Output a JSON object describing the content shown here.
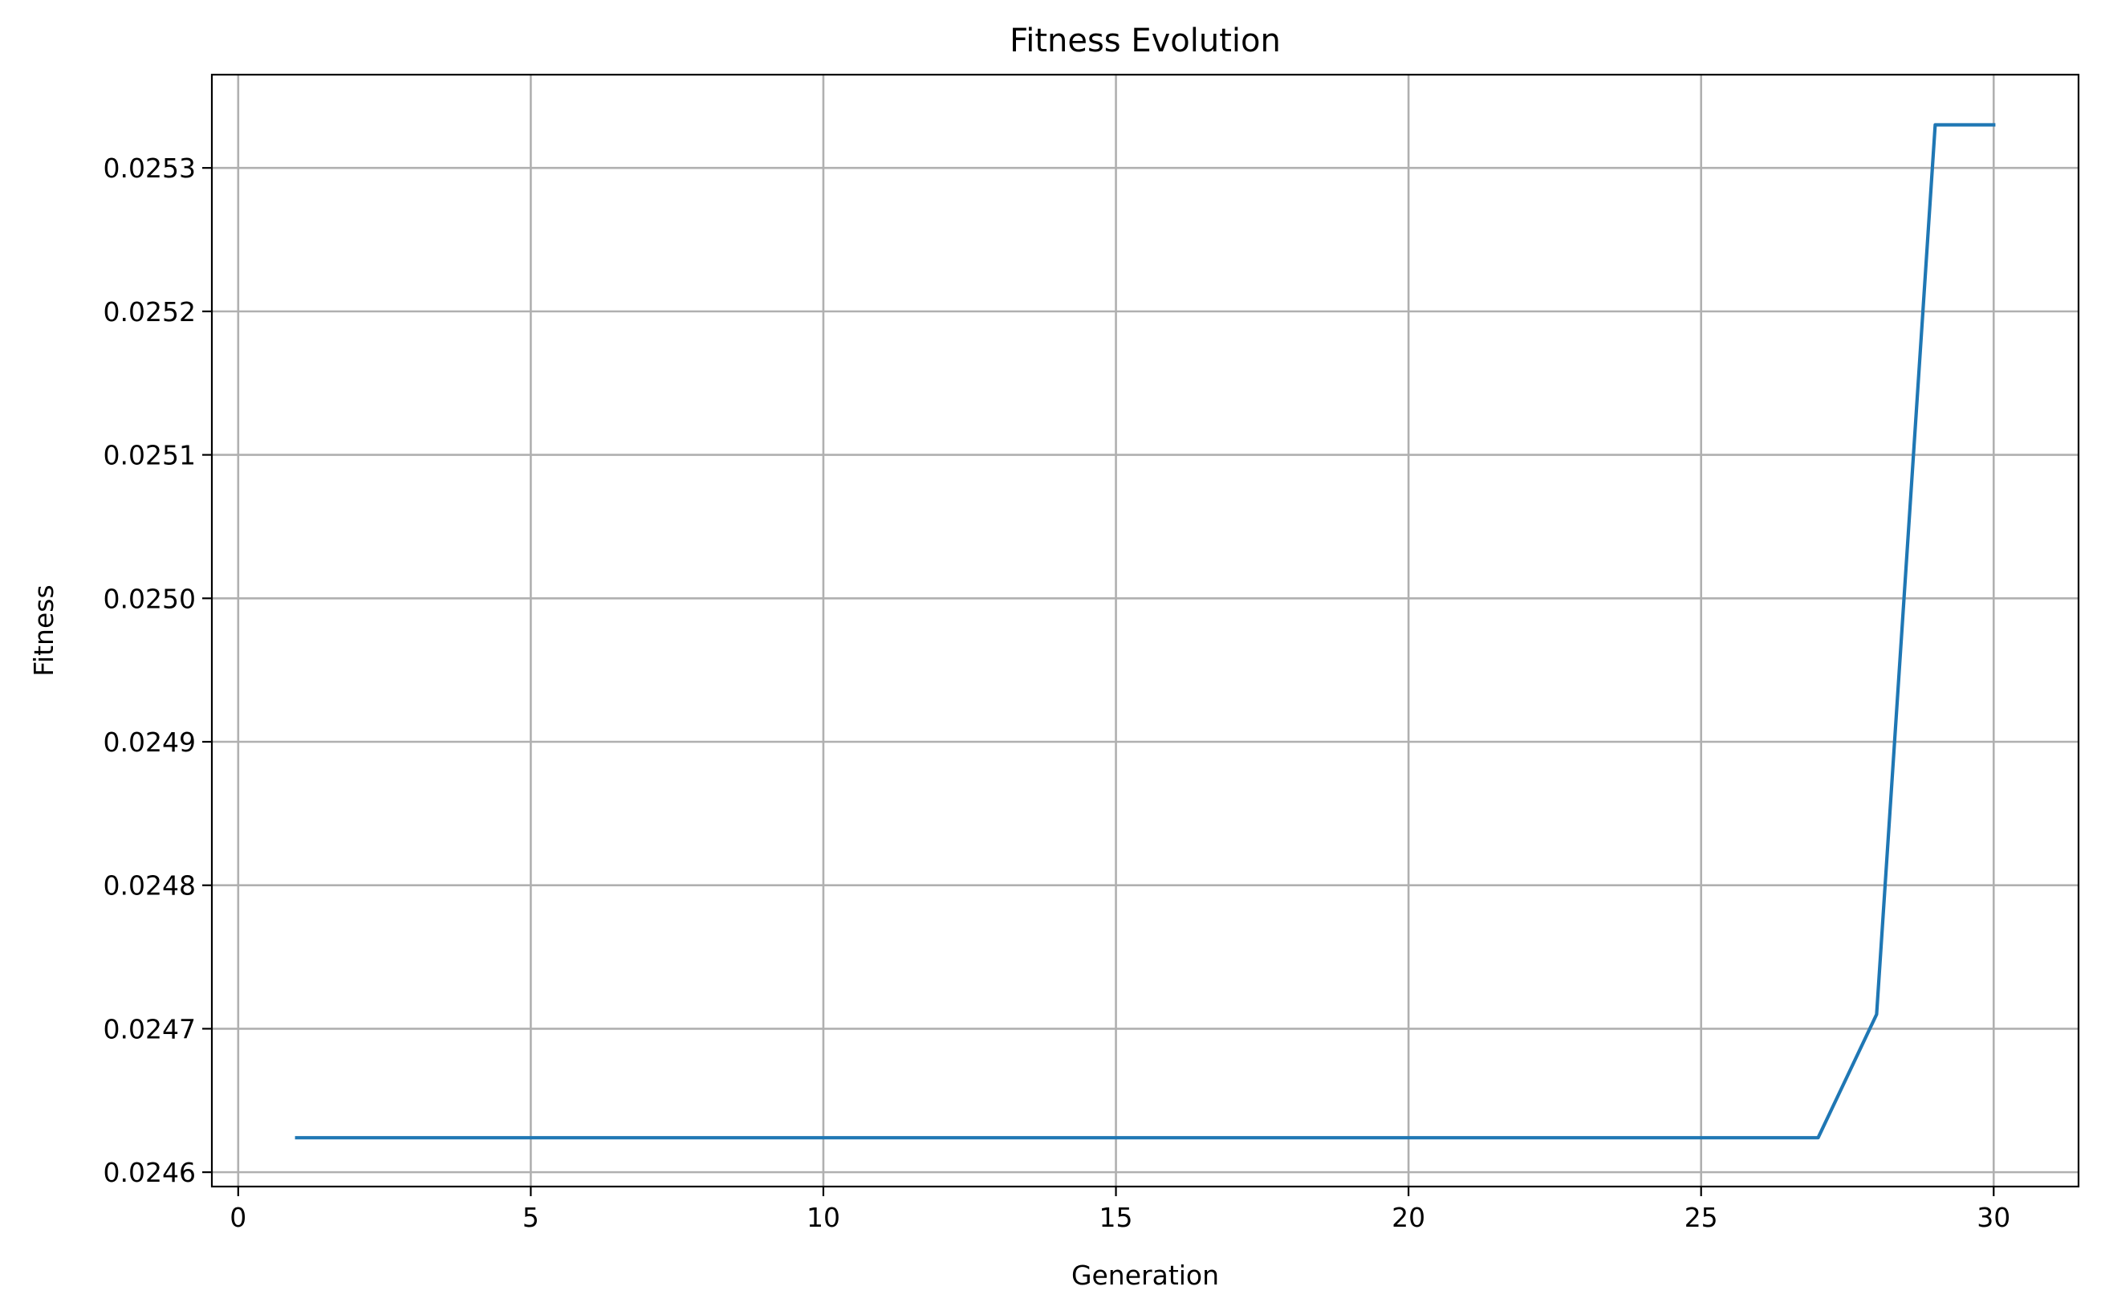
{
  "chart_data": {
    "type": "line",
    "title": "Fitness Evolution",
    "xlabel": "Generation",
    "ylabel": "Fitness",
    "xlim": [
      -0.45,
      31.45
    ],
    "ylim": [
      0.02459,
      0.025365
    ],
    "xticks": [
      0,
      5,
      10,
      15,
      20,
      25,
      30
    ],
    "xtick_labels": [
      "0",
      "5",
      "10",
      "15",
      "20",
      "25",
      "30"
    ],
    "yticks": [
      0.0246,
      0.0247,
      0.0248,
      0.0249,
      0.025,
      0.0251,
      0.0252,
      0.0253
    ],
    "ytick_labels": [
      "0.0246",
      "0.0247",
      "0.0248",
      "0.0249",
      "0.0250",
      "0.0251",
      "0.0252",
      "0.0253"
    ],
    "grid": true,
    "series": [
      {
        "color": "#1f77b4",
        "x": [
          1,
          2,
          3,
          4,
          5,
          6,
          7,
          8,
          9,
          10,
          11,
          12,
          13,
          14,
          15,
          16,
          17,
          18,
          19,
          20,
          21,
          22,
          23,
          24,
          25,
          26,
          27,
          28,
          29,
          30
        ],
        "y": [
          0.024624,
          0.024624,
          0.024624,
          0.024624,
          0.024624,
          0.024624,
          0.024624,
          0.024624,
          0.024624,
          0.024624,
          0.024624,
          0.024624,
          0.024624,
          0.024624,
          0.024624,
          0.024624,
          0.024624,
          0.024624,
          0.024624,
          0.024624,
          0.024624,
          0.024624,
          0.024624,
          0.024624,
          0.024624,
          0.024624,
          0.024624,
          0.02471,
          0.02533,
          0.02533
        ]
      }
    ]
  }
}
